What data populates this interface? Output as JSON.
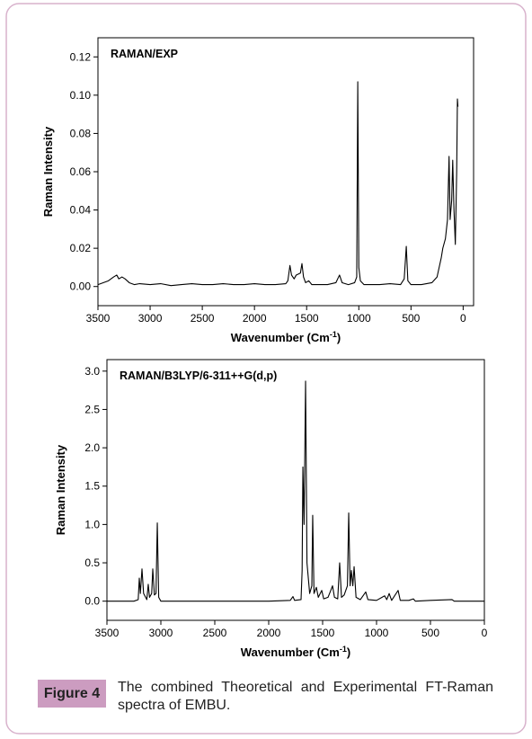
{
  "chart_data": [
    {
      "type": "line",
      "title": "RAMAN/EXP",
      "y_label": "Raman Intensity",
      "x_label": [
        "Wavenumber (Cm",
        "-1",
        ")"
      ],
      "xlim": [
        3500,
        -100
      ],
      "ylim": [
        -0.01,
        0.13
      ],
      "xticks": [
        3500,
        3000,
        2500,
        2000,
        1500,
        1000,
        500,
        0
      ],
      "yticks": [
        {
          "value": 0,
          "label": "0.00"
        },
        0.02,
        0.04,
        0.06,
        0.08,
        {
          "value": 0.1,
          "label": "0.10"
        },
        0.12
      ],
      "x": [
        3500,
        3450,
        3400,
        3350,
        3320,
        3300,
        3270,
        3240,
        3200,
        3150,
        3100,
        3000,
        2900,
        2800,
        2700,
        2600,
        2500,
        2400,
        2300,
        2200,
        2100,
        2000,
        1900,
        1800,
        1700,
        1680,
        1660,
        1645,
        1620,
        1600,
        1560,
        1545,
        1530,
        1510,
        1480,
        1450,
        1400,
        1300,
        1220,
        1185,
        1160,
        1100,
        1040,
        1020,
        1010,
        1000,
        985,
        950,
        900,
        800,
        700,
        600,
        565,
        545,
        530,
        500,
        400,
        300,
        250,
        210,
        195,
        170,
        150,
        135,
        125,
        110,
        100,
        88,
        75,
        62,
        55,
        50
      ],
      "series": [
        {
          "color": "#000000",
          "values": [
            0.001,
            0.002,
            0.003,
            0.005,
            0.006,
            0.004,
            0.005,
            0.004,
            0.002,
            0.001,
            0.0015,
            0.001,
            0.0015,
            0.0005,
            0.001,
            0.0015,
            0.001,
            0.001,
            0.0015,
            0.001,
            0.001,
            0.0015,
            0.001,
            0.001,
            0.0015,
            0.003,
            0.011,
            0.006,
            0.004,
            0.006,
            0.007,
            0.012,
            0.005,
            0.002,
            0.003,
            0.001,
            0.001,
            0.001,
            0.002,
            0.006,
            0.002,
            0.001,
            0.002,
            0.005,
            0.107,
            0.01,
            0.003,
            0.001,
            0.001,
            0.001,
            0.0015,
            0.001,
            0.004,
            0.021,
            0.003,
            0.001,
            0.001,
            0.002,
            0.005,
            0.015,
            0.02,
            0.025,
            0.035,
            0.068,
            0.035,
            0.045,
            0.066,
            0.04,
            0.022,
            0.06,
            0.098,
            0.094
          ]
        }
      ]
    },
    {
      "type": "line",
      "title": "RAMAN/B3LYP/6-311++G(d,p)",
      "y_label": "Raman Intensity",
      "x_label": [
        "Wavenumber (Cm",
        "-1",
        ")"
      ],
      "xlim": [
        3500,
        0
      ],
      "ylim": [
        -0.25,
        3.15
      ],
      "xticks": [
        3500,
        3000,
        2500,
        2000,
        1500,
        1000,
        500,
        0
      ],
      "yticks": [
        {
          "value": 0,
          "label": "0.0"
        },
        0.5,
        {
          "value": 1,
          "label": "1.0"
        },
        1.5,
        {
          "value": 2,
          "label": "2.0"
        },
        2.5,
        {
          "value": 3,
          "label": "3.0"
        }
      ],
      "x": [
        3500,
        3250,
        3210,
        3200,
        3190,
        3175,
        3160,
        3130,
        3117,
        3105,
        3085,
        3075,
        3060,
        3045,
        3033,
        3020,
        3000,
        2500,
        2000,
        1800,
        1775,
        1760,
        1700,
        1690,
        1683,
        1672,
        1658,
        1645,
        1620,
        1600,
        1592,
        1580,
        1558,
        1540,
        1508,
        1490,
        1450,
        1430,
        1408,
        1390,
        1360,
        1342,
        1325,
        1300,
        1270,
        1258,
        1245,
        1233,
        1220,
        1208,
        1190,
        1150,
        1100,
        1080,
        1000,
        925,
        905,
        883,
        860,
        800,
        780,
        700,
        658,
        640,
        500,
        300,
        280,
        0
      ],
      "series": [
        {
          "color": "#000000",
          "values": [
            0,
            0,
            0.02,
            0.3,
            0.1,
            0.42,
            0.1,
            0.02,
            0.22,
            0.05,
            0.1,
            0.42,
            0.08,
            0.1,
            1.02,
            0.05,
            0,
            0,
            0,
            0.01,
            0.06,
            0.01,
            0.02,
            0.4,
            1.75,
            1.0,
            2.87,
            0.5,
            0.1,
            0.2,
            1.12,
            0.1,
            0.18,
            0.05,
            0.14,
            0.03,
            0.05,
            0.12,
            0.2,
            0.05,
            0.03,
            0.5,
            0.05,
            0.08,
            0.2,
            1.15,
            0.2,
            0.4,
            0.2,
            0.45,
            0.05,
            0.02,
            0.12,
            0.02,
            0.01,
            0.07,
            0.02,
            0.1,
            0.01,
            0.14,
            0.01,
            0.01,
            0.03,
            0,
            0.01,
            0.02,
            0,
            0
          ]
        }
      ]
    }
  ],
  "caption": {
    "label": "Figure 4",
    "text": "The combined Theoretical and Experimental FT-Raman spectra of EMBU."
  }
}
